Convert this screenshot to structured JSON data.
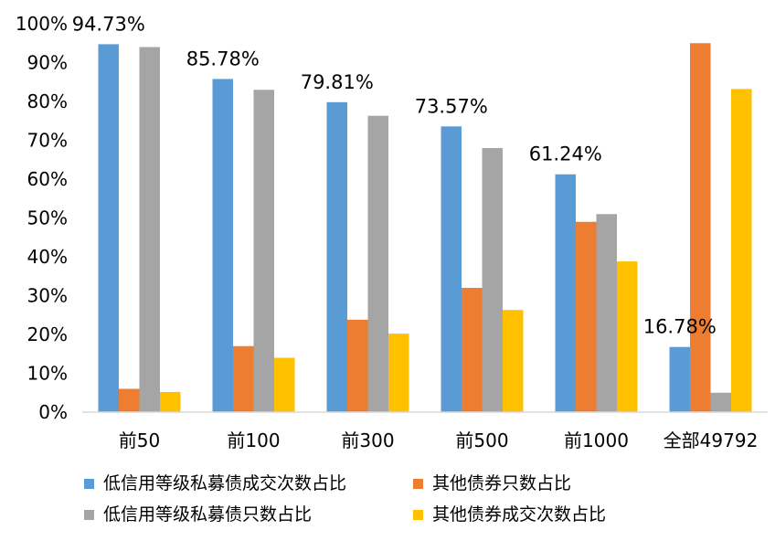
{
  "chart_data": {
    "type": "bar",
    "categories": [
      "前50",
      "前100",
      "前300",
      "前500",
      "前1000",
      "全部49792"
    ],
    "ylim": [
      0,
      100
    ],
    "yticks": [
      "0%",
      "10%",
      "20%",
      "30%",
      "40%",
      "50%",
      "60%",
      "70%",
      "80%",
      "90%",
      "100%"
    ],
    "grid": false,
    "legend_position": "bottom",
    "series": [
      {
        "name": "低信用等级私募债成交次数占比",
        "color": "#5B9BD5",
        "values": [
          94.73,
          85.78,
          79.81,
          73.57,
          61.24,
          16.78
        ],
        "labels": [
          "94.73%",
          "85.78%",
          "79.81%",
          "73.57%",
          "61.24%",
          "16.78%"
        ]
      },
      {
        "name": "其他债券只数占比",
        "color": "#ED7D31",
        "values": [
          6,
          17,
          23.8,
          32,
          49,
          95
        ]
      },
      {
        "name": "低信用等级私募债只数占比",
        "color": "#A5A5A5",
        "values": [
          94,
          83,
          76.3,
          68,
          51,
          5
        ]
      },
      {
        "name": "其他债券成交次数占比",
        "color": "#FFC000",
        "values": [
          5.2,
          14,
          20.2,
          26.3,
          38.8,
          83.2
        ]
      }
    ]
  },
  "legend": {
    "items": [
      {
        "label": "低信用等级私募债成交次数占比",
        "color": "#5B9BD5"
      },
      {
        "label": "其他债券只数占比",
        "color": "#ED7D31"
      },
      {
        "label": "低信用等级私募债只数占比",
        "color": "#A5A5A5"
      },
      {
        "label": "其他债券成交次数占比",
        "color": "#FFC000"
      }
    ]
  }
}
